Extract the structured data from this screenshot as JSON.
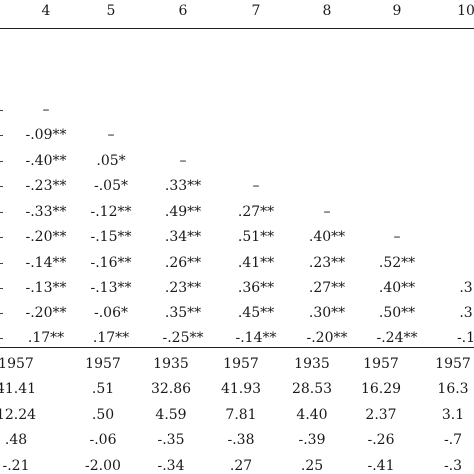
{
  "header": [
    "4",
    "5",
    "6",
    "7",
    "8",
    "9",
    "10"
  ],
  "corr_rows": [
    [
      "–"
    ],
    [
      "-.09**",
      "–"
    ],
    [
      "-.40**",
      ".05*",
      "–"
    ],
    [
      "-.23**",
      "-.05*",
      ".33**",
      "–"
    ],
    [
      "-.33**",
      "-.12**",
      ".49**",
      ".27**",
      "–"
    ],
    [
      "-.20**",
      "-.15**",
      ".34**",
      ".51**",
      ".40**",
      "–"
    ],
    [
      "-.14**",
      "-.16**",
      ".26**",
      ".41**",
      ".23**",
      ".52**",
      ""
    ],
    [
      "-.13**",
      "-.13**",
      ".23**",
      ".36**",
      ".27**",
      ".40**",
      ".3"
    ],
    [
      "-.20**",
      "-.06*",
      ".35**",
      ".45**",
      ".30**",
      ".50**",
      ".3"
    ],
    [
      ".17**",
      ".17**",
      "-.25**",
      "-.14**",
      "-.20**",
      "-.24**",
      "-.1"
    ]
  ],
  "stat_rows": [
    [
      "1957",
      "1957",
      "1935",
      "1957",
      "1935",
      "1957",
      "1957"
    ],
    [
      "41.41",
      ".51",
      "32.86",
      "41.93",
      "28.53",
      "16.29",
      "16.3"
    ],
    [
      "12.24",
      ".50",
      "4.59",
      "7.81",
      "4.40",
      "2.37",
      "3.1"
    ],
    [
      ".48",
      "-.06",
      "-.35",
      "-.38",
      "-.39",
      "-.26",
      "-.7"
    ],
    [
      "-.21",
      "-2.00",
      "-.34",
      ".27",
      ".25",
      "-.41",
      "-.3"
    ]
  ]
}
